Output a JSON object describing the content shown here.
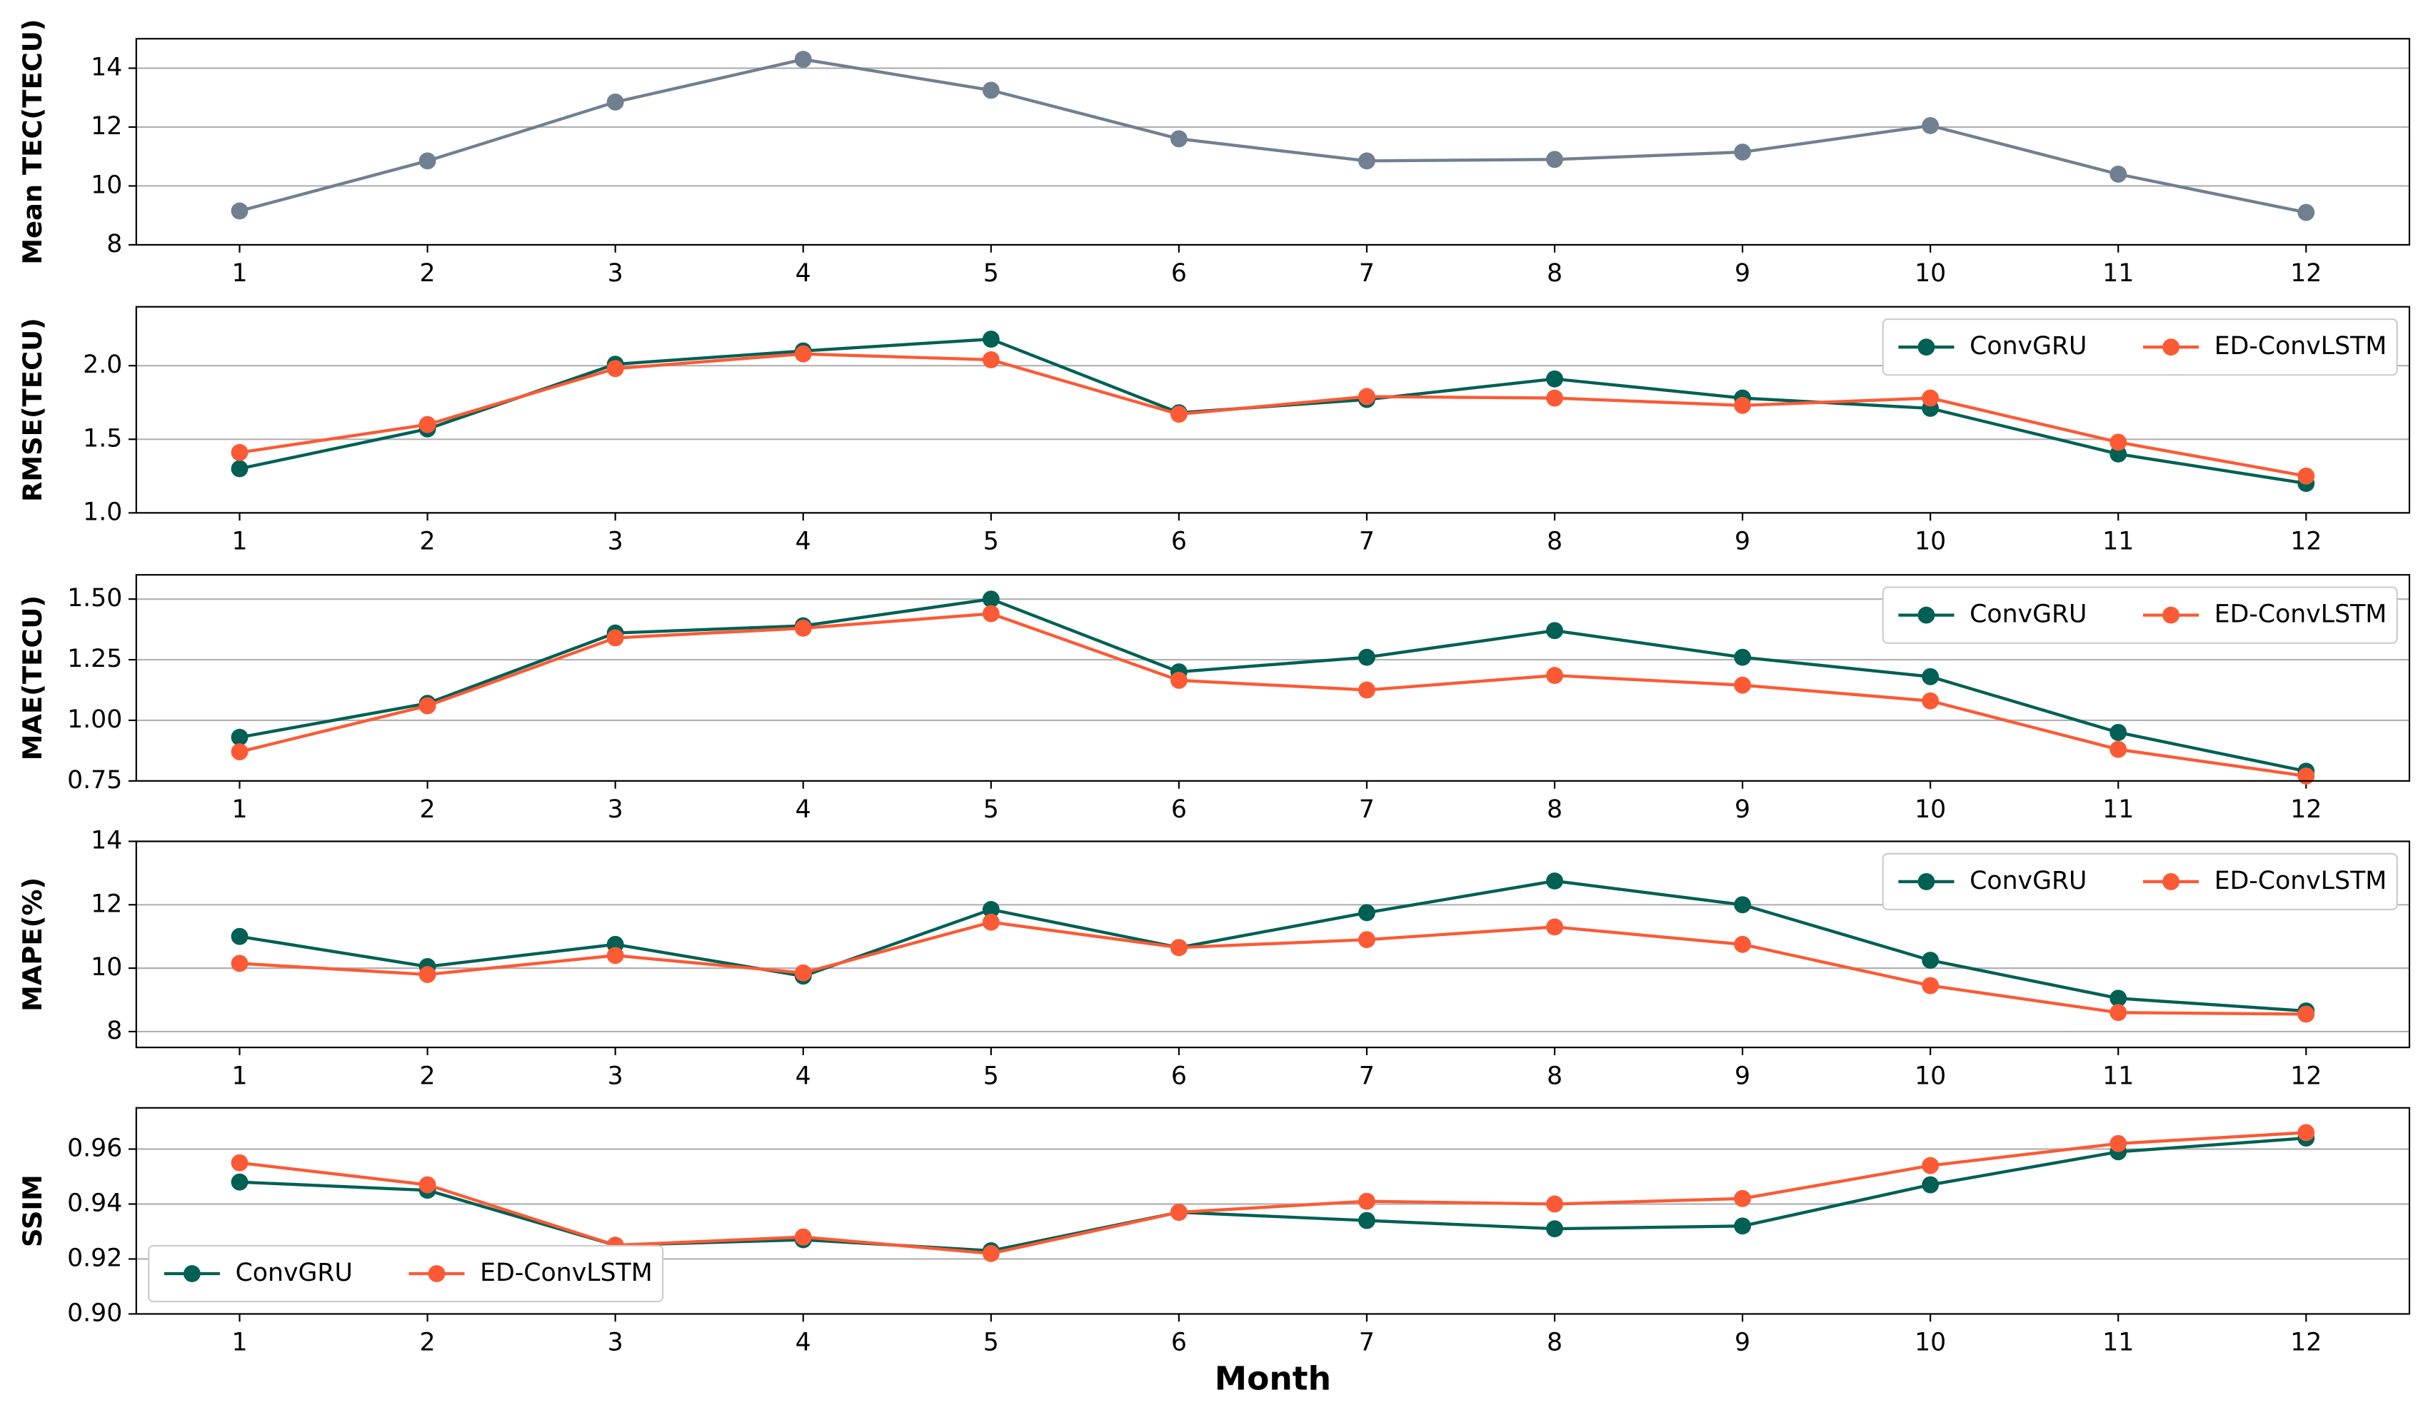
{
  "chart_data": [
    {
      "type": "line",
      "y_label": "Mean TEC(TECU)",
      "x": [
        1,
        2,
        3,
        4,
        5,
        6,
        7,
        8,
        9,
        10,
        11,
        12
      ],
      "xlim": [
        0.45,
        12.55
      ],
      "xticks": [
        1,
        2,
        3,
        4,
        5,
        6,
        7,
        8,
        9,
        10,
        11,
        12
      ],
      "ylim": [
        8,
        15
      ],
      "yticks": [
        8,
        10,
        12,
        14
      ],
      "grid": true,
      "color": "#708090",
      "values": [
        9.15,
        10.85,
        12.85,
        14.3,
        13.25,
        11.6,
        10.85,
        10.9,
        11.15,
        12.05,
        10.4,
        9.1
      ]
    },
    {
      "type": "line",
      "y_label": "RMSE(TECU)",
      "x": [
        1,
        2,
        3,
        4,
        5,
        6,
        7,
        8,
        9,
        10,
        11,
        12
      ],
      "xlim": [
        0.45,
        12.55
      ],
      "xticks": [
        1,
        2,
        3,
        4,
        5,
        6,
        7,
        8,
        9,
        10,
        11,
        12
      ],
      "ylim": [
        1.0,
        2.4
      ],
      "yticks": [
        {
          "value": 1.0,
          "label": "1.0"
        },
        1.5,
        {
          "value": 2.0,
          "label": "2.0"
        }
      ],
      "grid": true,
      "legend": "upper-right",
      "series": [
        {
          "name": "ConvGRU",
          "color": "#006054",
          "values": [
            1.3,
            1.57,
            2.01,
            2.1,
            2.18,
            1.68,
            1.77,
            1.91,
            1.78,
            1.71,
            1.4,
            1.2
          ]
        },
        {
          "name": "ED-ConvLSTM",
          "color": "#fb5a35",
          "values": [
            1.41,
            1.6,
            1.98,
            2.08,
            2.04,
            1.67,
            1.79,
            1.78,
            1.73,
            1.78,
            1.48,
            1.25
          ]
        }
      ]
    },
    {
      "type": "line",
      "y_label": "MAE(TECU)",
      "x": [
        1,
        2,
        3,
        4,
        5,
        6,
        7,
        8,
        9,
        10,
        11,
        12
      ],
      "xlim": [
        0.45,
        12.55
      ],
      "xticks": [
        1,
        2,
        3,
        4,
        5,
        6,
        7,
        8,
        9,
        10,
        11,
        12
      ],
      "ylim": [
        0.75,
        1.6
      ],
      "yticks": [
        0.75,
        {
          "value": 1.0,
          "label": "1.00"
        },
        1.25,
        {
          "value": 1.5,
          "label": "1.50"
        }
      ],
      "grid": true,
      "legend": "upper-right",
      "series": [
        {
          "name": "ConvGRU",
          "color": "#006054",
          "values": [
            0.93,
            1.07,
            1.36,
            1.39,
            1.5,
            1.2,
            1.26,
            1.37,
            1.26,
            1.18,
            0.95,
            0.79
          ]
        },
        {
          "name": "ED-ConvLSTM",
          "color": "#fb5a35",
          "values": [
            0.87,
            1.06,
            1.34,
            1.38,
            1.44,
            1.165,
            1.125,
            1.185,
            1.145,
            1.08,
            0.88,
            0.77
          ]
        }
      ]
    },
    {
      "type": "line",
      "y_label": "MAPE(%)",
      "x": [
        1,
        2,
        3,
        4,
        5,
        6,
        7,
        8,
        9,
        10,
        11,
        12
      ],
      "xlim": [
        0.45,
        12.55
      ],
      "xticks": [
        1,
        2,
        3,
        4,
        5,
        6,
        7,
        8,
        9,
        10,
        11,
        12
      ],
      "ylim": [
        7.5,
        14
      ],
      "yticks": [
        8,
        10,
        12,
        14
      ],
      "grid": true,
      "legend": "upper-right",
      "series": [
        {
          "name": "ConvGRU",
          "color": "#006054",
          "values": [
            11.0,
            10.05,
            10.75,
            9.75,
            11.85,
            10.65,
            11.75,
            12.75,
            12.0,
            10.25,
            9.05,
            8.65
          ]
        },
        {
          "name": "ED-ConvLSTM",
          "color": "#fb5a35",
          "values": [
            10.15,
            9.8,
            10.4,
            9.85,
            11.45,
            10.65,
            10.9,
            11.3,
            10.75,
            9.45,
            8.6,
            8.55
          ]
        }
      ]
    },
    {
      "type": "line",
      "y_label": "SSIM",
      "x_label": "Month",
      "x": [
        1,
        2,
        3,
        4,
        5,
        6,
        7,
        8,
        9,
        10,
        11,
        12
      ],
      "xlim": [
        0.45,
        12.55
      ],
      "xticks": [
        1,
        2,
        3,
        4,
        5,
        6,
        7,
        8,
        9,
        10,
        11,
        12
      ],
      "ylim": [
        0.9,
        0.975
      ],
      "yticks": [
        {
          "value": 0.9,
          "label": "0.90"
        },
        0.92,
        0.94,
        0.96
      ],
      "grid": true,
      "legend": "lower-left",
      "series": [
        {
          "name": "ConvGRU",
          "color": "#006054",
          "values": [
            0.948,
            0.945,
            0.925,
            0.927,
            0.923,
            0.937,
            0.934,
            0.931,
            0.932,
            0.947,
            0.959,
            0.964
          ]
        },
        {
          "name": "ED-ConvLSTM",
          "color": "#fb5a35",
          "values": [
            0.955,
            0.947,
            0.925,
            0.928,
            0.922,
            0.937,
            0.941,
            0.94,
            0.942,
            0.954,
            0.962,
            0.966
          ]
        }
      ]
    }
  ]
}
